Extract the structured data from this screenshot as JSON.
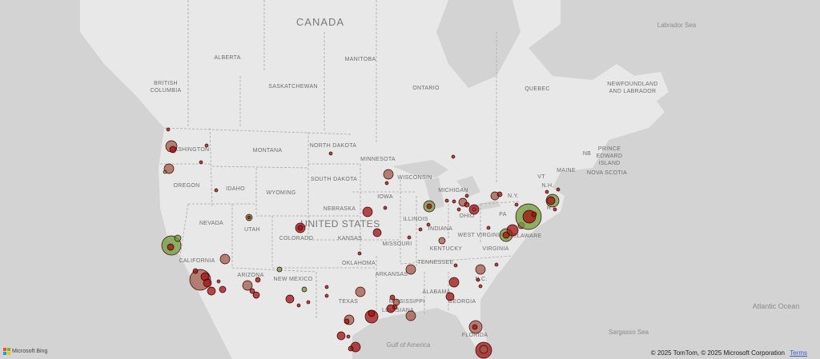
{
  "map": {
    "country_labels": [
      {
        "text": "CANADA",
        "size": "xl"
      },
      {
        "text": "UNITED STATES",
        "size": "lg"
      }
    ],
    "region_labels": [
      "ALBERTA",
      "MANITOBA",
      "BRITISH COLUMBIA",
      "SASKATCHEWAN",
      "ONTARIO",
      "QUEBEC",
      "NEWFOUNDLAND AND LABRADOR",
      "NB",
      "PRINCE EDWARD ISLAND",
      "NOVA SCOTIA",
      "WASHINGTON",
      "MONTANA",
      "NORTH DAKOTA",
      "MINNESOTA",
      "OREGON",
      "IDAHO",
      "SOUTH DAKOTA",
      "WISCONSIN",
      "MICHIGAN",
      "WYOMING",
      "IOWA",
      "NEBRASKA",
      "NEVADA",
      "UTAH",
      "COLORADO",
      "KANSAS",
      "ILLINOIS",
      "INDIANA",
      "OHIO",
      "PA",
      "N.Y.",
      "VT",
      "N.H.",
      "MAINE",
      "R.I.",
      "WEST VIRGINIA",
      "DELAWARE",
      "VIRGINIA",
      "KENTUCKY",
      "MISSOURI",
      "CALIFORNIA",
      "ARIZONA",
      "NEW MEXICO",
      "OKLAHOMA",
      "TENNESSEE",
      "ARKANSAS",
      "N.C.",
      "TEXAS",
      "MISSISSIPPI",
      "ALABAMA",
      "GEORGIA",
      "LOUISIANA",
      "FLORIDA"
    ],
    "water_labels": [
      "Labrador Sea",
      "Atlantic Ocean",
      "Sargasso Sea",
      "Gulf of America"
    ],
    "colors": {
      "land": "#e8e8e8",
      "water": "#d3d3d3",
      "border": "#a8a8a8",
      "bubble_red": "#a01010",
      "bubble_brown": "#a35a4a",
      "bubble_green": "#6e9a3a"
    }
  },
  "footer": {
    "brand": "Microsoft Bing",
    "copyright": "© 2025 TomTom, © 2025 Microsoft Corporation",
    "terms": "Terms"
  }
}
